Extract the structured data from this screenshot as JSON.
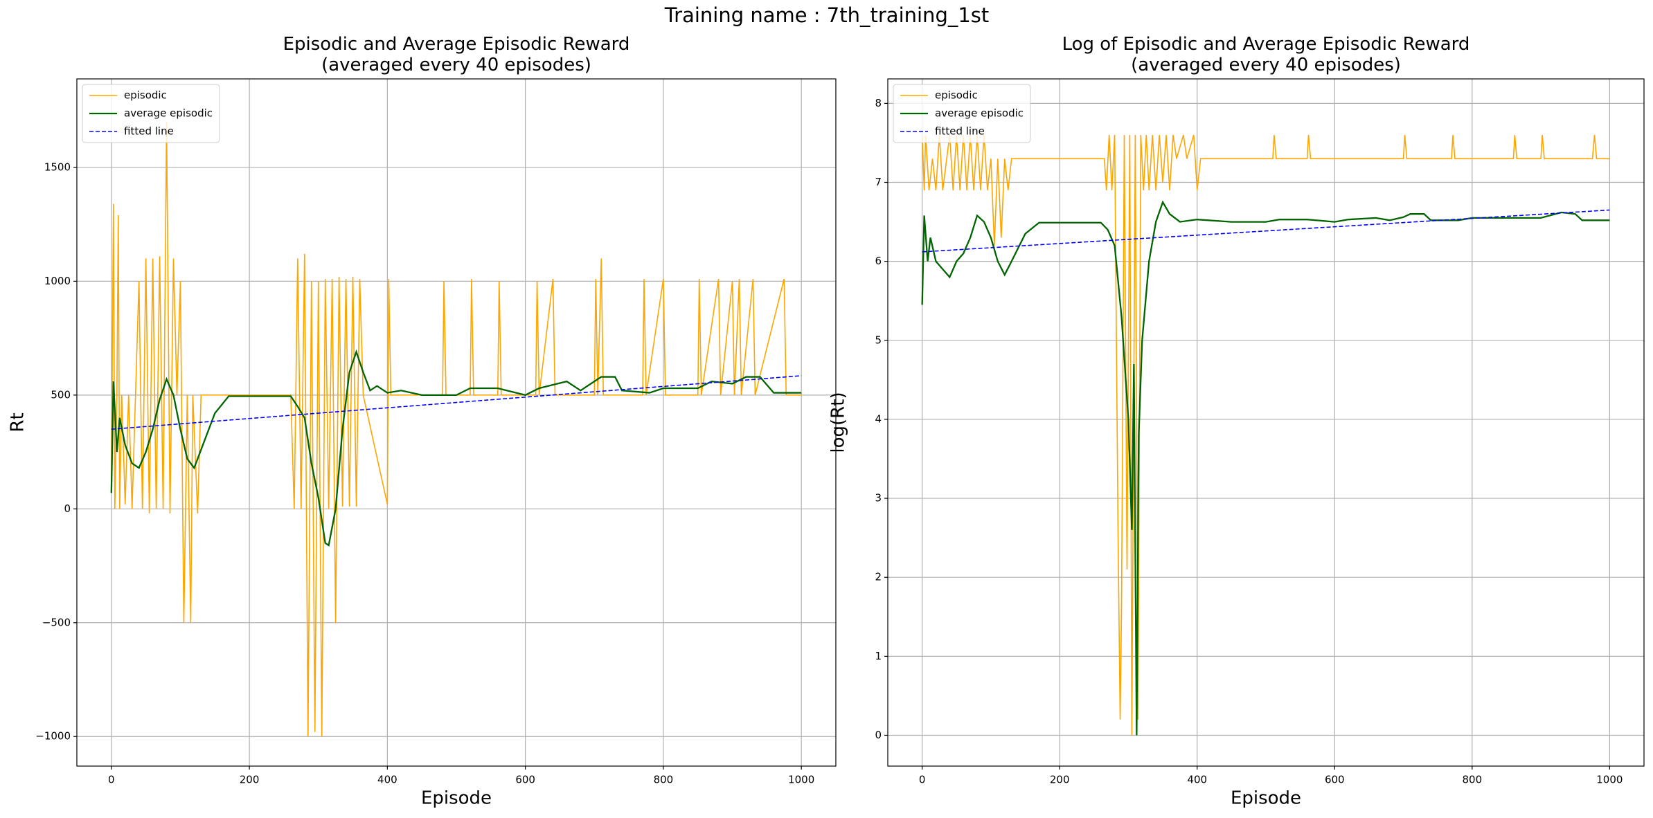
{
  "title": "Training name : 7th_training_1st",
  "chart_data": [
    {
      "type": "line",
      "title": "Episodic and Average Episodic Reward\n(averaged every 40 episodes)",
      "xlabel": "Episode",
      "ylabel": "Rt",
      "xlim": [
        -50,
        1050
      ],
      "ylim": [
        -1130,
        1889
      ],
      "xticks": [
        0,
        200,
        400,
        600,
        800,
        1000
      ],
      "yticks": [
        {
          "value": -1000,
          "label": "−1000"
        },
        {
          "value": -500,
          "label": "−500"
        },
        0,
        500,
        1000,
        1500
      ],
      "grid": true,
      "legend": "upper left",
      "series": [
        {
          "name": "episodic",
          "color": "#ffa500",
          "linestyle": "solid",
          "x": [
            0,
            3,
            5,
            8,
            10,
            12,
            15,
            20,
            25,
            30,
            35,
            40,
            45,
            50,
            55,
            60,
            65,
            70,
            75,
            80,
            85,
            90,
            95,
            100,
            105,
            110,
            115,
            118,
            125,
            130,
            260,
            265,
            270,
            275,
            280,
            285,
            290,
            295,
            300,
            305,
            310,
            315,
            320,
            325,
            330,
            335,
            340,
            345,
            350,
            355,
            360,
            365,
            400,
            402,
            405,
            480,
            482,
            485,
            520,
            522,
            525,
            560,
            562,
            565,
            615,
            617,
            620,
            640,
            643,
            700,
            702,
            705,
            710,
            713,
            770,
            772,
            775,
            800,
            803,
            850,
            852,
            855,
            880,
            883,
            900,
            903,
            910,
            913,
            930,
            933,
            975,
            978,
            1000
          ],
          "values": [
            100,
            1340,
            0,
            500,
            1290,
            0,
            500,
            20,
            500,
            0,
            500,
            1000,
            0,
            1100,
            -20,
            1100,
            0,
            1110,
            0,
            1700,
            -20,
            1100,
            500,
            1000,
            -500,
            500,
            -500,
            500,
            -20,
            500,
            500,
            0,
            1100,
            0,
            1120,
            -1000,
            1000,
            -980,
            1000,
            -1000,
            1010,
            0,
            1010,
            -500,
            1020,
            10,
            1010,
            10,
            1020,
            10,
            1010,
            500,
            20,
            1010,
            500,
            500,
            1000,
            500,
            500,
            1010,
            500,
            500,
            1000,
            500,
            500,
            1000,
            500,
            1010,
            500,
            500,
            1010,
            500,
            1100,
            500,
            500,
            1010,
            500,
            1010,
            500,
            500,
            1010,
            500,
            1010,
            500,
            1000,
            500,
            1010,
            500,
            1010,
            500,
            1010,
            500,
            500
          ]
        },
        {
          "name": "average episodic",
          "color": "#006400",
          "linestyle": "solid",
          "x": [
            0,
            3,
            8,
            12,
            20,
            30,
            40,
            50,
            60,
            70,
            80,
            90,
            100,
            110,
            120,
            130,
            150,
            170,
            260,
            270,
            280,
            290,
            300,
            310,
            315,
            325,
            335,
            345,
            355,
            365,
            375,
            385,
            400,
            420,
            450,
            500,
            520,
            560,
            600,
            620,
            660,
            680,
            700,
            710,
            730,
            740,
            780,
            800,
            850,
            870,
            900,
            920,
            940,
            960,
            1000
          ],
          "values": [
            70,
            560,
            250,
            400,
            280,
            200,
            180,
            250,
            350,
            480,
            570,
            500,
            350,
            220,
            180,
            260,
            420,
            495,
            495,
            450,
            400,
            200,
            50,
            -150,
            -160,
            0,
            350,
            600,
            690,
            600,
            520,
            540,
            510,
            520,
            500,
            500,
            530,
            530,
            500,
            530,
            560,
            520,
            560,
            580,
            580,
            520,
            510,
            530,
            530,
            560,
            550,
            580,
            580,
            510,
            510
          ]
        },
        {
          "name": "fitted line",
          "color": "#0000ff",
          "linestyle": "dashed",
          "x": [
            0,
            1000
          ],
          "values": [
            350,
            585
          ]
        }
      ]
    },
    {
      "type": "line",
      "title": "Log of Episodic and Average Episodic Reward\n(averaged every 40 episodes)",
      "xlabel": "Episode",
      "ylabel": "log(Rt)",
      "xlim": [
        -50,
        1050
      ],
      "ylim": [
        -0.39,
        8.31
      ],
      "xticks": [
        0,
        200,
        400,
        600,
        800,
        1000
      ],
      "yticks": [
        0,
        1,
        2,
        3,
        4,
        5,
        6,
        7,
        8
      ],
      "grid": true,
      "legend": "upper left",
      "series": [
        {
          "name": "episodic",
          "color": "#ffa500",
          "linestyle": "solid",
          "x": [
            0,
            3,
            5,
            10,
            15,
            20,
            25,
            30,
            40,
            45,
            50,
            55,
            60,
            65,
            70,
            75,
            80,
            85,
            90,
            95,
            100,
            105,
            110,
            115,
            120,
            125,
            130,
            265,
            268,
            272,
            276,
            280,
            285,
            288,
            290,
            294,
            298,
            302,
            305,
            310,
            314,
            318,
            322,
            326,
            330,
            335,
            340,
            345,
            350,
            355,
            360,
            365,
            370,
            380,
            385,
            395,
            400,
            405,
            510,
            512,
            515,
            560,
            562,
            565,
            700,
            702,
            705,
            770,
            772,
            775,
            860,
            862,
            865,
            900,
            902,
            905,
            975,
            978,
            981,
            1000
          ],
          "values": [
            7.6,
            6.9,
            7.6,
            6.9,
            7.3,
            6.9,
            7.6,
            6.9,
            7.6,
            6.9,
            7.6,
            6.9,
            7.6,
            6.9,
            7.6,
            6.9,
            7.6,
            6.9,
            7.6,
            6.9,
            7.3,
            6.2,
            7.3,
            6.3,
            7.3,
            6.9,
            7.3,
            7.3,
            6.9,
            7.6,
            6.9,
            7.6,
            2.5,
            0.2,
            1.6,
            7.6,
            2.1,
            7.6,
            0,
            7.6,
            0.2,
            7.6,
            6.9,
            7.6,
            6.9,
            7.6,
            6.9,
            7.6,
            7.0,
            7.6,
            6.9,
            7.6,
            7.3,
            7.6,
            7.3,
            7.6,
            6.9,
            7.3,
            7.3,
            7.6,
            7.3,
            7.3,
            7.6,
            7.3,
            7.3,
            7.6,
            7.3,
            7.3,
            7.6,
            7.3,
            7.3,
            7.6,
            7.3,
            7.3,
            7.6,
            7.3,
            7.3,
            7.6,
            7.3,
            7.3
          ]
        },
        {
          "name": "average episodic",
          "color": "#006400",
          "linestyle": "solid",
          "x": [
            0,
            3,
            8,
            12,
            20,
            30,
            40,
            50,
            60,
            70,
            80,
            90,
            100,
            110,
            120,
            130,
            150,
            170,
            260,
            270,
            280,
            290,
            300,
            305,
            308,
            312,
            315,
            320,
            330,
            340,
            350,
            360,
            375,
            400,
            450,
            500,
            520,
            560,
            600,
            620,
            660,
            680,
            700,
            710,
            730,
            740,
            780,
            800,
            850,
            870,
            900,
            930,
            950,
            960,
            1000
          ],
          "values": [
            5.45,
            6.58,
            6.0,
            6.3,
            6.0,
            5.9,
            5.8,
            6.0,
            6.1,
            6.3,
            6.58,
            6.5,
            6.3,
            6.0,
            5.83,
            6.0,
            6.35,
            6.49,
            6.49,
            6.4,
            6.2,
            5.3,
            4.0,
            2.6,
            4.7,
            0.0,
            3.8,
            5.0,
            6.0,
            6.5,
            6.75,
            6.6,
            6.5,
            6.53,
            6.5,
            6.5,
            6.53,
            6.53,
            6.5,
            6.53,
            6.55,
            6.52,
            6.56,
            6.6,
            6.6,
            6.52,
            6.52,
            6.55,
            6.55,
            6.55,
            6.55,
            6.62,
            6.6,
            6.52,
            6.52
          ]
        },
        {
          "name": "fitted line",
          "color": "#0000ff",
          "linestyle": "dashed",
          "x": [
            0,
            1000
          ],
          "values": [
            6.12,
            6.65
          ]
        }
      ]
    }
  ]
}
